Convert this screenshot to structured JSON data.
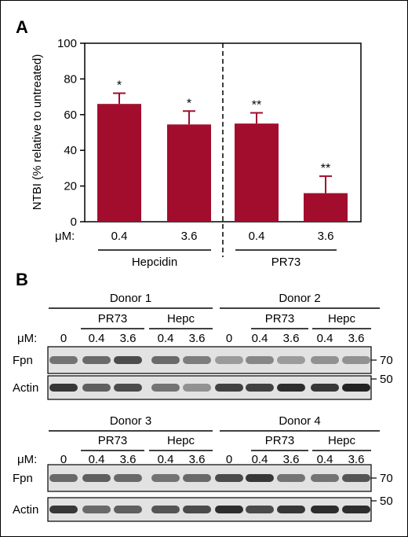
{
  "panels": {
    "a": "A",
    "b": "B"
  },
  "chart_data": {
    "type": "bar",
    "ylabel": "NTBI (% relative to untreated)",
    "ylim": [
      0,
      100
    ],
    "yticks": [
      0,
      20,
      40,
      60,
      80,
      100
    ],
    "unit_label": "μM:",
    "bar_color": "#a20d2e",
    "bars": [
      {
        "dose": "0.4",
        "value": 66,
        "error": 6,
        "sig": "*"
      },
      {
        "dose": "3.6",
        "value": 54.5,
        "error": 7.5,
        "sig": "*"
      },
      {
        "dose": "0.4",
        "value": 55,
        "error": 6,
        "sig": "**"
      },
      {
        "dose": "3.6",
        "value": 16,
        "error": 9.5,
        "sig": "**"
      }
    ],
    "groups": [
      "Hepcidin",
      "PR73"
    ]
  },
  "blot": {
    "unit_label": "μM:",
    "row_labels": [
      "Fpn",
      "Actin"
    ],
    "markers": [
      "70",
      "50"
    ],
    "blocks": [
      {
        "donors": [
          "Donor 1",
          "Donor 2"
        ],
        "groups": [
          "PR73",
          "Hepc"
        ],
        "lanes": [
          "0",
          "0.4",
          "3.6",
          "0.4",
          "3.6",
          "0",
          "0.4",
          "3.6",
          "0.4",
          "3.6"
        ],
        "fpn_intensity": [
          0.55,
          0.6,
          0.75,
          0.6,
          0.5,
          0.35,
          0.45,
          0.35,
          0.4,
          0.4
        ],
        "actin_intensity": [
          0.85,
          0.65,
          0.75,
          0.55,
          0.4,
          0.8,
          0.8,
          0.9,
          0.85,
          0.95
        ]
      },
      {
        "donors": [
          "Donor 3",
          "Donor 4"
        ],
        "groups": [
          "PR73",
          "Hepc"
        ],
        "lanes": [
          "0",
          "0.4",
          "3.6",
          "0.4",
          "3.6",
          "0",
          "0.4",
          "3.6",
          "0.4",
          "3.6"
        ],
        "fpn_intensity": [
          0.6,
          0.65,
          0.6,
          0.55,
          0.6,
          0.75,
          0.85,
          0.55,
          0.55,
          0.7
        ],
        "actin_intensity": [
          0.85,
          0.6,
          0.65,
          0.7,
          0.75,
          0.9,
          0.75,
          0.85,
          0.9,
          0.9
        ]
      }
    ]
  }
}
